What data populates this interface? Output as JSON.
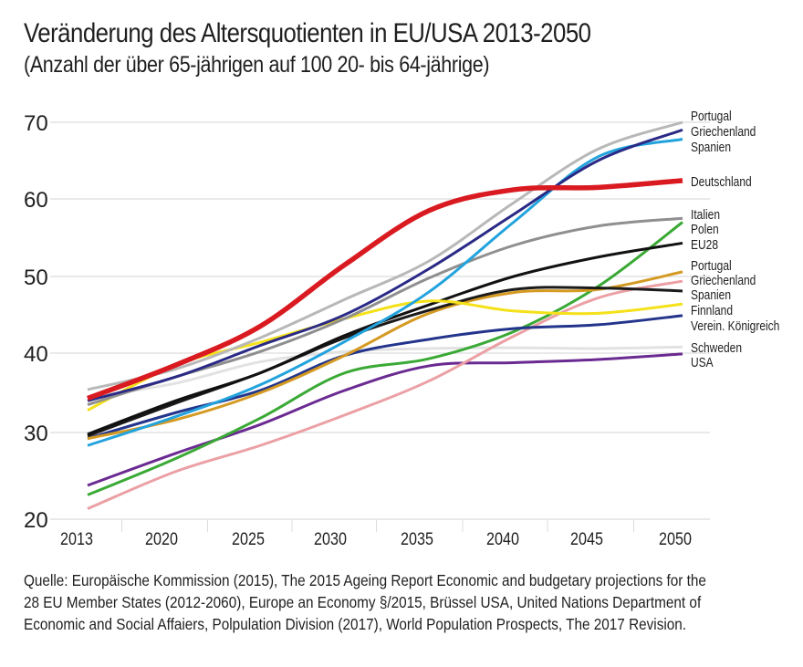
{
  "header": {
    "title": "Veränderung des Altersquotienten in EU/USA 2013-2050",
    "subtitle": "(Anzahl der über 65-jährigen auf 100 20- bis 64-jährige)"
  },
  "source_lines": [
    "Quelle: Europäische Kommission (2015), The 2015 Ageing Report Economic and budgetary projections for the",
    "28 EU Member States (2012-2060), Europe an Economy §/2015, Brüssel USA, United Nations Department of",
    "Economic and Social Affaiers, Polpulation Division (2017), World Population Prospects, The 2017 Revision."
  ],
  "chart_data": {
    "type": "line",
    "title": "Veränderung des Altersquotienten in EU/USA 2013-2050",
    "subtitle": "(Anzahl der über 65-jährigen auf 100 20- bis 64-jährige)",
    "xlabel": "",
    "ylabel": "",
    "x": [
      "2013",
      "2020",
      "2025",
      "2030",
      "2035",
      "2040",
      "2045",
      "2050"
    ],
    "yticks": [
      20,
      30,
      40,
      50,
      60,
      70
    ],
    "ylim": [
      20,
      70
    ],
    "grid": "horizontal",
    "legend_position": "right (direct labels at line ends)",
    "series": [
      {
        "name": "Schweden",
        "color": "#e2e2e2",
        "values": [
          34.4,
          36.2,
          38.9,
          40.2,
          40.6,
          40.7,
          40.6,
          40.8
        ]
      },
      {
        "name": "USA",
        "color": "#6a2a91",
        "values": [
          23.9,
          27.6,
          31.0,
          35.3,
          38.4,
          38.8,
          39.2,
          39.9
        ]
      },
      {
        "name": "Griechenland",
        "color": "#eba0a4",
        "values": [
          21.2,
          25.5,
          28.5,
          32.2,
          36.5,
          42.2,
          47.2,
          49.4
        ]
      },
      {
        "name": "Polen",
        "color": "#3aa935",
        "values": [
          22.8,
          27.0,
          31.8,
          37.5,
          39.3,
          42.8,
          48.7,
          57.0
        ]
      },
      {
        "name": "Verein. Königreich",
        "color": "#23348c",
        "values": [
          29.3,
          32.5,
          35.3,
          39.7,
          41.8,
          43.2,
          43.7,
          44.9
        ]
      },
      {
        "name": "Portugal",
        "color": "#d49a22",
        "values": [
          29.3,
          31.6,
          35.0,
          39.7,
          45.2,
          47.9,
          48.3,
          50.6
        ]
      },
      {
        "name": "Spanien",
        "color": "#1a1a1a",
        "values": [
          29.6,
          33.7,
          37.5,
          42.0,
          45.6,
          48.3,
          48.5,
          48.1
        ]
      },
      {
        "name": "EU28",
        "color": "#111111",
        "values": [
          29.8,
          34.0,
          37.5,
          42.3,
          46.3,
          50.0,
          52.5,
          54.3
        ]
      },
      {
        "name": "Finnland",
        "color": "#f5e11a",
        "values": [
          32.8,
          38.5,
          41.4,
          44.5,
          46.8,
          45.5,
          45.2,
          46.4
        ]
      },
      {
        "name": "Italien",
        "color": "#8f8f8f",
        "values": [
          33.5,
          37.0,
          40.2,
          44.5,
          49.8,
          54.0,
          56.5,
          57.5
        ]
      },
      {
        "name": "Spanien",
        "color": "#23a3dd",
        "values": [
          28.5,
          32.0,
          36.0,
          41.5,
          48.0,
          57.0,
          65.5,
          67.8
        ]
      },
      {
        "name": "Griechenland",
        "color": "#2a2a86",
        "values": [
          34.0,
          37.0,
          41.0,
          45.0,
          51.0,
          58.0,
          65.0,
          69.0
        ]
      },
      {
        "name": "Portugal",
        "color": "#b8b8b8",
        "values": [
          35.4,
          38.0,
          42.0,
          47.0,
          52.0,
          59.5,
          66.5,
          70.0
        ]
      },
      {
        "name": "Deutschland",
        "color": "#d91a20",
        "values": [
          34.3,
          38.5,
          43.5,
          51.5,
          58.5,
          61.2,
          61.5,
          62.4
        ]
      }
    ],
    "legend_entries": [
      "Portugal",
      "Griechenland",
      "Spanien",
      "Deutschland",
      "Italien",
      "Polen",
      "EU28",
      "Portugal",
      "Griechenland",
      "Spanien",
      "Finnland",
      "Verein. Königreich",
      "Schweden",
      "USA"
    ]
  }
}
